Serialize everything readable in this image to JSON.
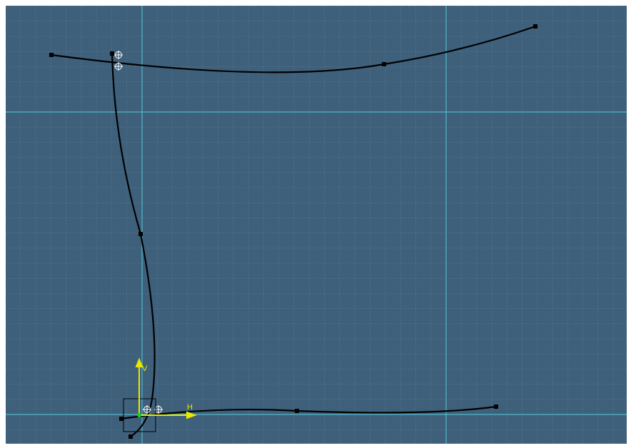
{
  "axes": {
    "vertical_label": "V",
    "horizontal_label": "H"
  }
}
